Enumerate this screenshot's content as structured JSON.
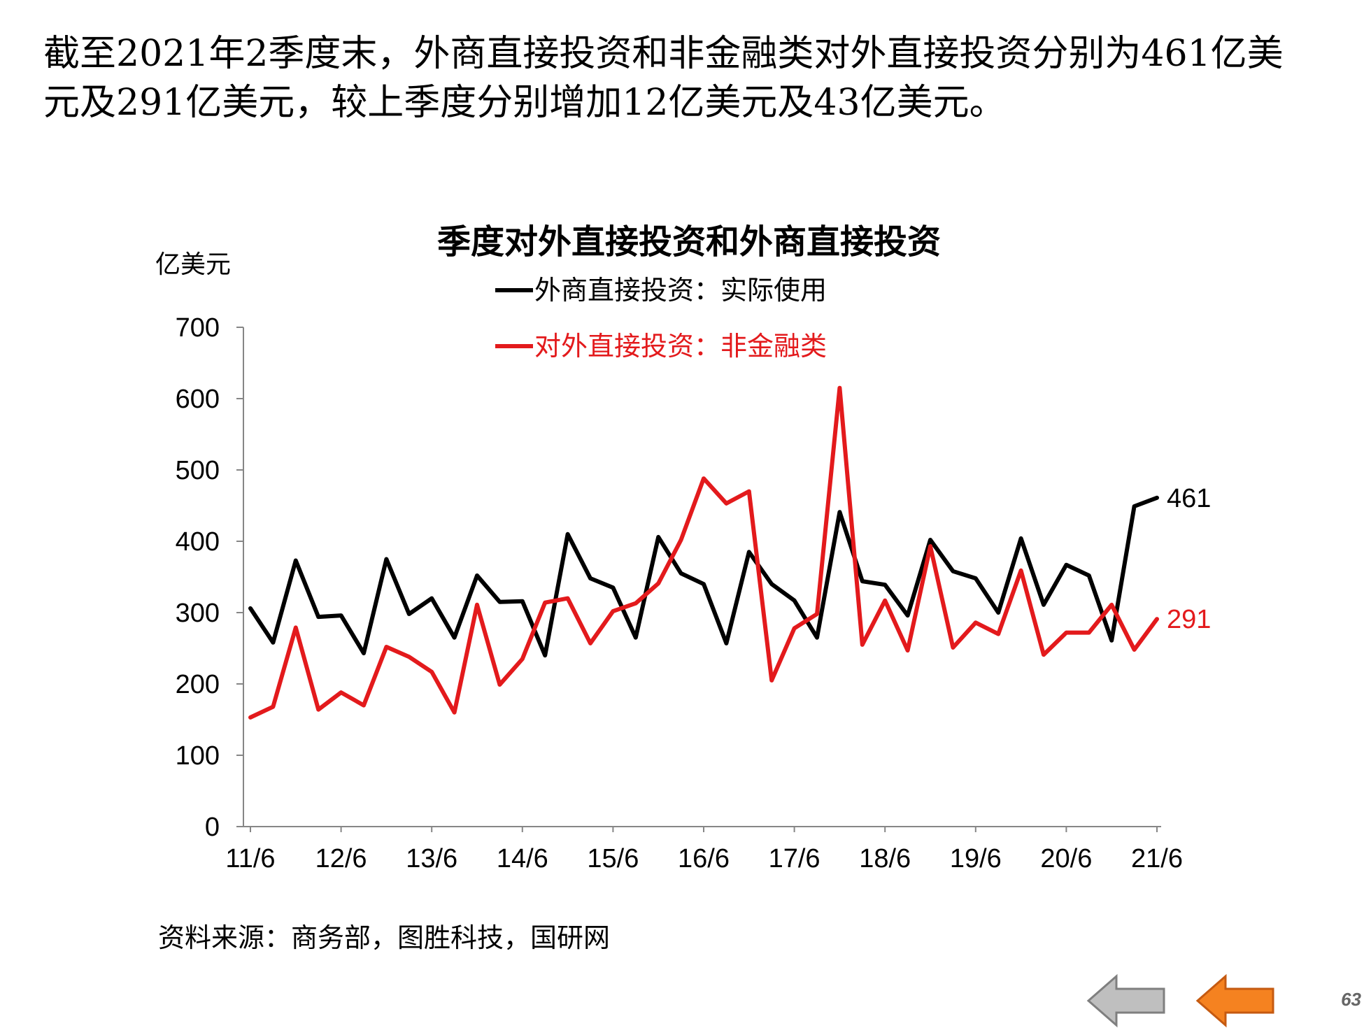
{
  "slide": {
    "headline_line1": "截至2021年2季度末，外商直接投资和非金融类对外直接投资分别为461亿美",
    "headline_line2": "元及291亿美元，较上季度分别增加12亿美元及43亿美元。",
    "source": "资料来源：商务部，图胜科技，国研网",
    "page_number": "63"
  },
  "nav": {
    "back_icon": "left-arrow-icon",
    "back_color": "#bfbfbf",
    "forward_icon": "left-arrow-icon",
    "forward_color": "#f58220"
  },
  "chart_data": {
    "type": "line",
    "title": "季度对外直接投资和外商直接投资",
    "ylabel": "亿美元",
    "xlabel": "",
    "ylim": [
      0,
      700
    ],
    "yticks": [
      "0",
      "100",
      "200",
      "300",
      "400",
      "500",
      "600",
      "700"
    ],
    "xtick_labels": [
      "11/6",
      "12/6",
      "13/6",
      "14/6",
      "15/6",
      "16/6",
      "17/6",
      "18/6",
      "19/6",
      "20/6",
      "21/6"
    ],
    "x": [
      "11/6",
      "11/9",
      "11/12",
      "12/3",
      "12/6",
      "12/9",
      "12/12",
      "13/3",
      "13/6",
      "13/9",
      "13/12",
      "14/3",
      "14/6",
      "14/9",
      "14/12",
      "15/3",
      "15/6",
      "15/9",
      "15/12",
      "16/3",
      "16/6",
      "16/9",
      "16/12",
      "17/3",
      "17/6",
      "17/9",
      "17/12",
      "18/3",
      "18/6",
      "18/9",
      "18/12",
      "19/3",
      "19/6",
      "19/9",
      "19/12",
      "20/3",
      "20/6",
      "20/9",
      "20/12",
      "21/3",
      "21/6"
    ],
    "legend_position": "top-center",
    "grid": false,
    "series": [
      {
        "name": "外商直接投资：实际使用",
        "color": "#000000",
        "end_label": "461",
        "values": [
          306,
          258,
          373,
          294,
          296,
          243,
          375,
          298,
          320,
          265,
          352,
          315,
          316,
          240,
          410,
          348,
          335,
          265,
          406,
          355,
          340,
          257,
          385,
          340,
          317,
          265,
          441,
          344,
          339,
          296,
          402,
          358,
          348,
          300,
          404,
          311,
          367,
          352,
          261,
          449,
          461
        ]
      },
      {
        "name": "对外直接投资：非金融类",
        "color": "#e31a1c",
        "end_label": "291",
        "values": [
          153,
          168,
          279,
          164,
          188,
          170,
          252,
          238,
          217,
          160,
          311,
          199,
          235,
          314,
          320,
          257,
          302,
          313,
          341,
          402,
          488,
          453,
          470,
          205,
          278,
          298,
          615,
          255,
          317,
          247,
          393,
          251,
          286,
          270,
          359,
          241,
          272,
          272,
          311,
          248,
          291
        ]
      }
    ]
  }
}
